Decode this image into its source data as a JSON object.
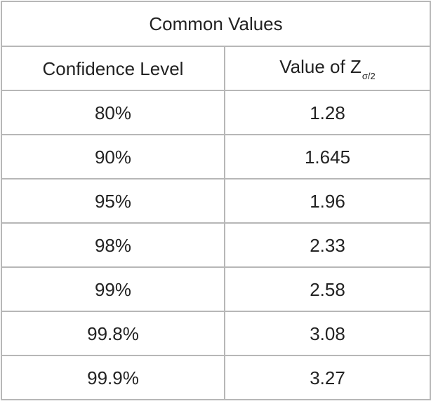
{
  "table": {
    "title": "Common Values",
    "headers": {
      "confidence_level": "Confidence Level",
      "z_value_main": "Value of Z",
      "z_value_subscript": "σ/2"
    },
    "rows": [
      {
        "confidence": "80%",
        "z": "1.28"
      },
      {
        "confidence": "90%",
        "z": "1.645"
      },
      {
        "confidence": "95%",
        "z": "1.96"
      },
      {
        "confidence": "98%",
        "z": "2.33"
      },
      {
        "confidence": "99%",
        "z": "2.58"
      },
      {
        "confidence": "99.8%",
        "z": "3.08"
      },
      {
        "confidence": "99.9%",
        "z": "3.27"
      }
    ]
  },
  "colors": {
    "border": "#b7b7b7",
    "text": "#222222",
    "background": "#ffffff"
  }
}
